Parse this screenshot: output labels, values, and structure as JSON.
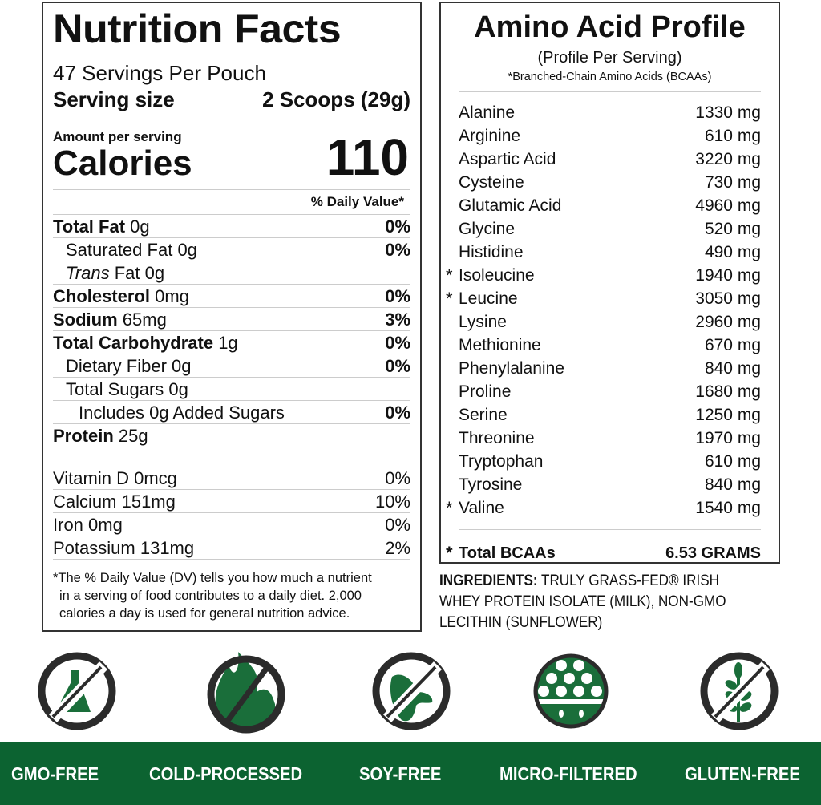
{
  "nutrition": {
    "title": "Nutrition Facts",
    "servings": "47 Servings Per Pouch",
    "serving_size_label": "Serving size",
    "serving_size_value": "2 Scoops (29g)",
    "amount_per_serving": "Amount per serving",
    "calories_label": "Calories",
    "calories_value": "110",
    "dv_header": "% Daily Value*",
    "rows": [
      {
        "name": "Total Fat",
        "amount": "0g",
        "dv": "0%"
      },
      {
        "name": "Saturated Fat",
        "amount": "0g",
        "dv": "0%"
      },
      {
        "name": "Trans",
        "name_suffix": "Fat",
        "amount": "0g",
        "dv": ""
      },
      {
        "name": "Cholesterol",
        "amount": "0mg",
        "dv": "0%"
      },
      {
        "name": "Sodium",
        "amount": "65mg",
        "dv": "3%"
      },
      {
        "name": "Total Carbohydrate",
        "amount": "1g",
        "dv": "0%"
      },
      {
        "name": "Dietary Fiber",
        "amount": "0g",
        "dv": "0%"
      },
      {
        "name": "Total Sugars",
        "amount": "0g",
        "dv": ""
      },
      {
        "name": "Includes",
        "amount": "0g",
        "name_suffix": "Added Sugars",
        "dv": "0%"
      },
      {
        "name": "Protein",
        "amount": "25g",
        "dv": ""
      }
    ],
    "vitamins": [
      {
        "name": "Vitamin D",
        "amount": "0mcg",
        "dv": "0%"
      },
      {
        "name": "Calcium",
        "amount": "151mg",
        "dv": "10%"
      },
      {
        "name": "Iron",
        "amount": "0mg",
        "dv": "0%"
      },
      {
        "name": "Potassium",
        "amount": "131mg",
        "dv": "2%"
      }
    ],
    "footnote": [
      "*The % Daily Value (DV) tells you how much a nutrient",
      "in a serving of food contributes to a daily diet. 2,000",
      "calories a day is used for general nutrition advice."
    ]
  },
  "amino": {
    "title": "Amino Acid Profile",
    "subtitle": "(Profile Per Serving)",
    "note": "*Branched-Chain Amino Acids (BCAAs)",
    "star": "*",
    "rows": [
      {
        "name": "Alanine",
        "value": "1330 mg",
        "bcaa": false
      },
      {
        "name": "Arginine",
        "value": "610 mg",
        "bcaa": false
      },
      {
        "name": "Aspartic Acid",
        "value": "3220 mg",
        "bcaa": false
      },
      {
        "name": "Cysteine",
        "value": "730 mg",
        "bcaa": false
      },
      {
        "name": "Glutamic Acid",
        "value": "4960 mg",
        "bcaa": false
      },
      {
        "name": "Glycine",
        "value": "520 mg",
        "bcaa": false
      },
      {
        "name": "Histidine",
        "value": "490 mg",
        "bcaa": false
      },
      {
        "name": "Isoleucine",
        "value": "1940 mg",
        "bcaa": true
      },
      {
        "name": "Leucine",
        "value": "3050 mg",
        "bcaa": true
      },
      {
        "name": "Lysine",
        "value": "2960 mg",
        "bcaa": false
      },
      {
        "name": "Methionine",
        "value": "670 mg",
        "bcaa": false
      },
      {
        "name": "Phenylalanine",
        "value": "840 mg",
        "bcaa": false
      },
      {
        "name": "Proline",
        "value": "1680 mg",
        "bcaa": false
      },
      {
        "name": "Serine",
        "value": "1250 mg",
        "bcaa": false
      },
      {
        "name": "Threonine",
        "value": "1970 mg",
        "bcaa": false
      },
      {
        "name": "Tryptophan",
        "value": "610 mg",
        "bcaa": false
      },
      {
        "name": "Tyrosine",
        "value": "840 mg",
        "bcaa": false
      },
      {
        "name": "Valine",
        "value": "1540 mg",
        "bcaa": true
      }
    ],
    "total_label": "Total BCAAs",
    "total_value": "6.53 GRAMS"
  },
  "ingredients": {
    "label": "INGREDIENTS:",
    "lines": [
      "TRULY GRASS-FED® IRISH",
      "WHEY PROTEIN ISOLATE (MILK), NON-GMO",
      "LECITHIN (SUNFLOWER)"
    ]
  },
  "badges": [
    {
      "label": "GMO-FREE",
      "icon": "no-flask-icon"
    },
    {
      "label": "COLD-PROCESSED",
      "icon": "no-flame-icon"
    },
    {
      "label": "SOY-FREE",
      "icon": "no-soybean-icon"
    },
    {
      "label": "MICRO-FILTERED",
      "icon": "filter-icon"
    },
    {
      "label": "GLUTEN-FREE",
      "icon": "no-wheat-icon"
    }
  ],
  "colors": {
    "brand_green": "#0c6331",
    "icon_green": "#1a6e3a",
    "ring": "#2b2b2b"
  }
}
